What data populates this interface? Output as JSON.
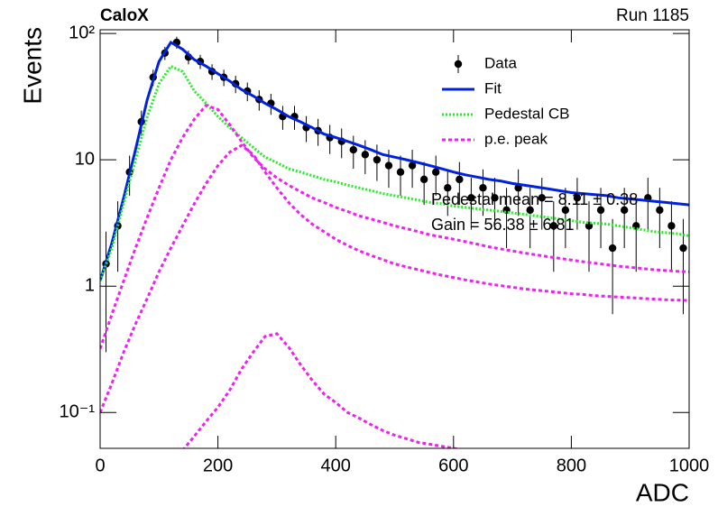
{
  "chart_data": {
    "type": "line",
    "title": "CaloX",
    "subtitle": "Run 1185",
    "y_label": "Events",
    "x_label": "ADC",
    "xlim": [
      0,
      1000
    ],
    "xticks": [
      0,
      200,
      400,
      600,
      800,
      1000
    ],
    "ylim": [
      0.052,
      107
    ],
    "log_y": true,
    "yticks": [
      {
        "value": 0.1,
        "label": "10⁻¹"
      },
      1,
      10,
      {
        "value": 100,
        "label": "10²"
      }
    ],
    "legend": "top-right",
    "annotations": [
      "Pedestal mean = 8.11 ± 0.38",
      "Gain = 56.38 ± 6.81"
    ],
    "series": [
      {
        "name": "Data",
        "style": "markers",
        "color": "#000000",
        "x": [
          10,
          30,
          50,
          70,
          90,
          110,
          130,
          150,
          170,
          190,
          210,
          230,
          250,
          270,
          290,
          310,
          330,
          350,
          370,
          390,
          410,
          430,
          450,
          470,
          490,
          510,
          530,
          550,
          570,
          590,
          610,
          630,
          650,
          670,
          690,
          710,
          730,
          750,
          770,
          790,
          810,
          830,
          850,
          870,
          890,
          910,
          930,
          950,
          970,
          990
        ],
        "values": [
          1.5,
          3,
          8,
          20,
          45,
          70,
          85,
          65,
          60,
          50,
          45,
          40,
          35,
          30,
          28,
          22,
          22,
          18,
          17,
          15,
          14,
          12,
          11,
          10,
          9,
          8,
          9,
          7,
          8,
          6,
          7,
          5,
          6,
          5,
          4,
          6,
          4,
          5,
          3,
          4,
          5,
          3,
          4,
          2,
          4,
          3,
          5,
          4,
          3,
          2
        ],
        "errors": [
          1.2,
          1.7,
          2.8,
          4.5,
          6.7,
          8.4,
          9.2,
          8.1,
          7.7,
          7.1,
          6.7,
          6.3,
          5.9,
          5.5,
          5.3,
          4.7,
          4.7,
          4.2,
          4.1,
          3.9,
          3.7,
          3.5,
          3.3,
          3.2,
          3,
          2.8,
          3,
          2.6,
          2.8,
          2.4,
          2.6,
          2.2,
          2.4,
          2.2,
          2,
          2.4,
          2,
          2.2,
          1.7,
          2,
          2.2,
          1.7,
          2,
          1.4,
          2,
          1.7,
          2.2,
          2,
          1.7,
          1.4
        ]
      },
      {
        "name": "Fit",
        "style": "solid",
        "color": "#0022dd",
        "x": [
          0,
          20,
          40,
          60,
          80,
          100,
          120,
          140,
          160,
          180,
          200,
          220,
          240,
          260,
          280,
          300,
          320,
          340,
          360,
          380,
          400,
          420,
          440,
          460,
          480,
          500,
          520,
          540,
          560,
          580,
          600,
          620,
          640,
          660,
          680,
          700,
          720,
          740,
          760,
          780,
          800,
          820,
          840,
          860,
          880,
          900,
          920,
          940,
          960,
          980,
          1000
        ],
        "values": [
          1.1,
          2.2,
          5,
          12,
          30,
          60,
          85,
          75,
          62,
          55,
          48,
          42,
          36,
          32,
          28,
          25,
          22,
          20,
          18,
          16,
          15,
          14,
          13,
          12,
          11,
          10.5,
          10,
          9.5,
          9,
          8.5,
          8,
          7.6,
          7.3,
          7,
          6.8,
          6.5,
          6.3,
          6.1,
          5.9,
          5.7,
          5.5,
          5.4,
          5.3,
          5.2,
          5.0,
          4.9,
          4.8,
          4.7,
          4.6,
          4.5,
          4.4
        ]
      },
      {
        "name": "Pedestal CB",
        "style": "dotted",
        "color": "#22ee22",
        "x": [
          0,
          20,
          40,
          60,
          80,
          100,
          120,
          140,
          160,
          180,
          200,
          220,
          240,
          260,
          280,
          300,
          320,
          340,
          360,
          380,
          400,
          420,
          440,
          460,
          480,
          500,
          520,
          540,
          560,
          580,
          600,
          620,
          640,
          660,
          680,
          700,
          720,
          740,
          760,
          780,
          800,
          820,
          840,
          860,
          880,
          900,
          920,
          940,
          960,
          980,
          1000
        ],
        "values": [
          1.1,
          2,
          4.5,
          10,
          22,
          40,
          55,
          50,
          35,
          28,
          22,
          18,
          15,
          12.5,
          10.5,
          9.5,
          8.5,
          8,
          7.5,
          7,
          6.7,
          6.3,
          6,
          5.7,
          5.4,
          5.2,
          5,
          4.8,
          4.6,
          4.5,
          4.3,
          4.2,
          4.1,
          4,
          3.9,
          3.8,
          3.7,
          3.6,
          3.5,
          3.4,
          3.3,
          3.2,
          3.15,
          3.1,
          3,
          2.9,
          2.8,
          2.7,
          2.65,
          2.6,
          2.5
        ]
      },
      {
        "name": "p.e. peak",
        "style": "dashed",
        "color": "#ee22ee",
        "x": [
          0,
          20,
          40,
          60,
          80,
          100,
          120,
          140,
          160,
          180,
          200,
          220,
          240,
          260,
          280,
          300,
          320,
          340,
          360,
          380,
          400,
          420,
          440,
          460,
          480,
          500,
          520,
          540,
          560,
          580,
          600,
          620,
          640,
          660,
          680,
          700,
          720,
          740,
          760,
          780,
          800,
          820,
          840,
          860,
          880,
          900,
          920,
          940,
          960,
          980,
          1000
        ],
        "values": [
          0.32,
          0.6,
          1.1,
          2,
          3.5,
          6,
          10,
          15,
          21,
          27,
          25,
          19,
          14,
          10.5,
          8.5,
          7.2,
          6.3,
          5.6,
          5,
          4.6,
          4.2,
          3.9,
          3.6,
          3.4,
          3.2,
          3,
          2.85,
          2.7,
          2.55,
          2.45,
          2.35,
          2.25,
          2.15,
          2.05,
          1.97,
          1.9,
          1.83,
          1.77,
          1.71,
          1.66,
          1.61,
          1.56,
          1.52,
          1.48,
          1.44,
          1.41,
          1.38,
          1.35,
          1.33,
          1.31,
          1.3
        ]
      },
      {
        "style": "dashed",
        "color": "#ee22ee",
        "x": [
          0,
          20,
          40,
          60,
          80,
          100,
          120,
          140,
          160,
          180,
          200,
          220,
          240,
          260,
          280,
          300,
          320,
          340,
          360,
          380,
          400,
          420,
          440,
          460,
          480,
          500,
          520,
          540,
          560,
          580,
          600,
          620,
          640,
          660,
          680,
          700,
          720,
          740,
          760,
          780,
          800,
          820,
          840,
          860,
          880,
          900,
          920,
          940,
          960,
          980,
          1000
        ],
        "values": [
          0.1,
          0.17,
          0.3,
          0.5,
          0.8,
          1.3,
          2,
          3,
          4.5,
          6.5,
          9,
          11.5,
          13,
          11,
          8,
          6,
          4.6,
          3.7,
          3.1,
          2.7,
          2.35,
          2.1,
          1.9,
          1.75,
          1.62,
          1.5,
          1.42,
          1.35,
          1.28,
          1.22,
          1.17,
          1.12,
          1.08,
          1.04,
          1.01,
          0.98,
          0.95,
          0.93,
          0.91,
          0.89,
          0.87,
          0.86,
          0.84,
          0.83,
          0.82,
          0.81,
          0.8,
          0.79,
          0.78,
          0.775,
          0.77
        ]
      },
      {
        "style": "dashed",
        "color": "#ee22ee",
        "x": [
          0,
          20,
          40,
          60,
          80,
          100,
          120,
          140,
          160,
          180,
          200,
          220,
          240,
          260,
          280,
          300,
          320,
          340,
          360,
          380,
          400,
          420,
          440,
          460,
          480,
          500,
          520,
          540,
          560,
          580,
          600,
          620,
          640,
          660,
          680,
          700,
          720,
          740,
          760,
          780,
          800,
          820,
          840,
          860,
          880,
          900,
          920,
          940,
          960,
          980,
          1000
        ],
        "values": [
          null,
          null,
          null,
          null,
          null,
          null,
          null,
          0.05,
          0.065,
          0.085,
          0.11,
          0.15,
          0.22,
          0.3,
          0.4,
          0.42,
          0.33,
          0.24,
          0.18,
          0.14,
          0.12,
          0.1,
          0.09,
          0.08,
          0.072,
          0.066,
          0.062,
          0.058,
          0.056,
          0.054,
          0.052,
          0.05,
          null,
          null,
          null,
          null,
          null,
          null,
          null,
          null,
          null,
          null,
          null,
          null,
          null,
          null,
          null,
          null,
          null,
          null,
          null
        ]
      }
    ]
  }
}
